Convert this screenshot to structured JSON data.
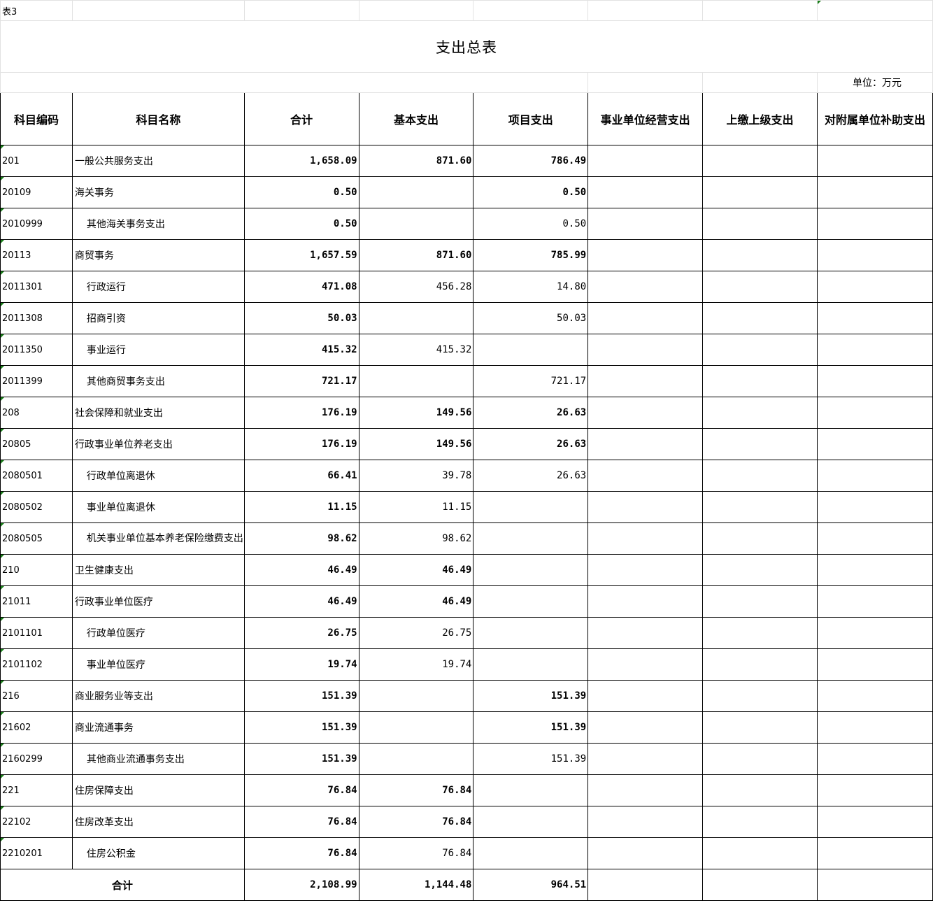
{
  "sheet_label": "表3",
  "title": "支出总表",
  "unit": "单位：万元",
  "headers": [
    "科目编码",
    "科目名称",
    "合计",
    "基本支出",
    "项目支出",
    "事业单位经营支出",
    "上缴上级支出",
    "对附属单位补助支出"
  ],
  "rows": [
    {
      "code": "201",
      "name": "一般公共服务支出",
      "total": "1,658.09",
      "basic": "871.60",
      "project": "786.49"
    },
    {
      "code": "20109",
      "name": "海关事务",
      "total": "0.50",
      "basic": "",
      "project": "0.50"
    },
    {
      "code": "2010999",
      "name": "其他海关事务支出",
      "total": "0.50",
      "basic": "",
      "project": "0.50"
    },
    {
      "code": "20113",
      "name": "商贸事务",
      "total": "1,657.59",
      "basic": "871.60",
      "project": "785.99"
    },
    {
      "code": "2011301",
      "name": "行政运行",
      "total": "471.08",
      "basic": "456.28",
      "project": "14.80"
    },
    {
      "code": "2011308",
      "name": "招商引资",
      "total": "50.03",
      "basic": "",
      "project": "50.03"
    },
    {
      "code": "2011350",
      "name": "事业运行",
      "total": "415.32",
      "basic": "415.32",
      "project": ""
    },
    {
      "code": "2011399",
      "name": "其他商贸事务支出",
      "total": "721.17",
      "basic": "",
      "project": "721.17"
    },
    {
      "code": "208",
      "name": "社会保障和就业支出",
      "total": "176.19",
      "basic": "149.56",
      "project": "26.63"
    },
    {
      "code": "20805",
      "name": "行政事业单位养老支出",
      "total": "176.19",
      "basic": "149.56",
      "project": "26.63"
    },
    {
      "code": "2080501",
      "name": "行政单位离退休",
      "total": "66.41",
      "basic": "39.78",
      "project": "26.63"
    },
    {
      "code": "2080502",
      "name": "事业单位离退休",
      "total": "11.15",
      "basic": "11.15",
      "project": ""
    },
    {
      "code": "2080505",
      "name": "机关事业单位基本养老保险缴费支出",
      "total": "98.62",
      "basic": "98.62",
      "project": ""
    },
    {
      "code": "210",
      "name": "卫生健康支出",
      "total": "46.49",
      "basic": "46.49",
      "project": ""
    },
    {
      "code": "21011",
      "name": "行政事业单位医疗",
      "total": "46.49",
      "basic": "46.49",
      "project": ""
    },
    {
      "code": "2101101",
      "name": "行政单位医疗",
      "total": "26.75",
      "basic": "26.75",
      "project": ""
    },
    {
      "code": "2101102",
      "name": "事业单位医疗",
      "total": "19.74",
      "basic": "19.74",
      "project": ""
    },
    {
      "code": "216",
      "name": "商业服务业等支出",
      "total": "151.39",
      "basic": "",
      "project": "151.39"
    },
    {
      "code": "21602",
      "name": "商业流通事务",
      "total": "151.39",
      "basic": "",
      "project": "151.39"
    },
    {
      "code": "2160299",
      "name": "其他商业流通事务支出",
      "total": "151.39",
      "basic": "",
      "project": "151.39"
    },
    {
      "code": "221",
      "name": "住房保障支出",
      "total": "76.84",
      "basic": "76.84",
      "project": ""
    },
    {
      "code": "22102",
      "name": "住房改革支出",
      "total": "76.84",
      "basic": "76.84",
      "project": ""
    },
    {
      "code": "2210201",
      "name": "住房公积金",
      "total": "76.84",
      "basic": "76.84",
      "project": ""
    }
  ],
  "total_row": {
    "label": "合计",
    "total": "2,108.99",
    "basic": "1,144.48",
    "project": "964.51"
  }
}
